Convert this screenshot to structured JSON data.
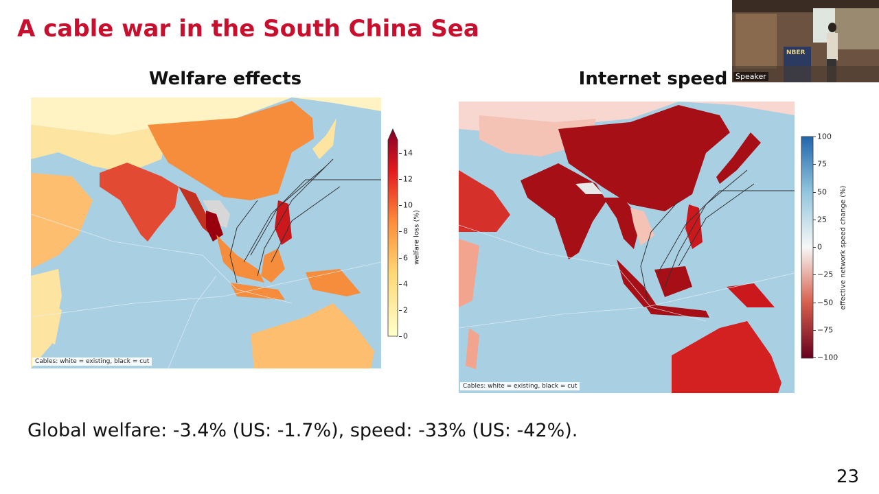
{
  "slide": {
    "title": "A cable war in the South China Sea",
    "left_panel": {
      "title": "Welfare effects",
      "caption": "Cables: white = existing, black = cut",
      "colorbar_label": "welfare loss (%)",
      "colorbar_ticks": [
        "14",
        "12",
        "10",
        "8",
        "6",
        "4",
        "2",
        "0"
      ]
    },
    "right_panel": {
      "title": "Internet speed",
      "caption": "Cables: white = existing, black = cut",
      "colorbar_label": "effective network speed change (%)",
      "colorbar_ticks": [
        "100",
        "75",
        "50",
        "25",
        "0",
        "−25",
        "−50",
        "−75",
        "−100"
      ]
    },
    "summary": "Global welfare: -3.4% (US: -1.7%), speed: -33% (US: -42%).",
    "page_number": "23",
    "video": {
      "label": "Speaker",
      "sign": "NBER"
    }
  }
}
